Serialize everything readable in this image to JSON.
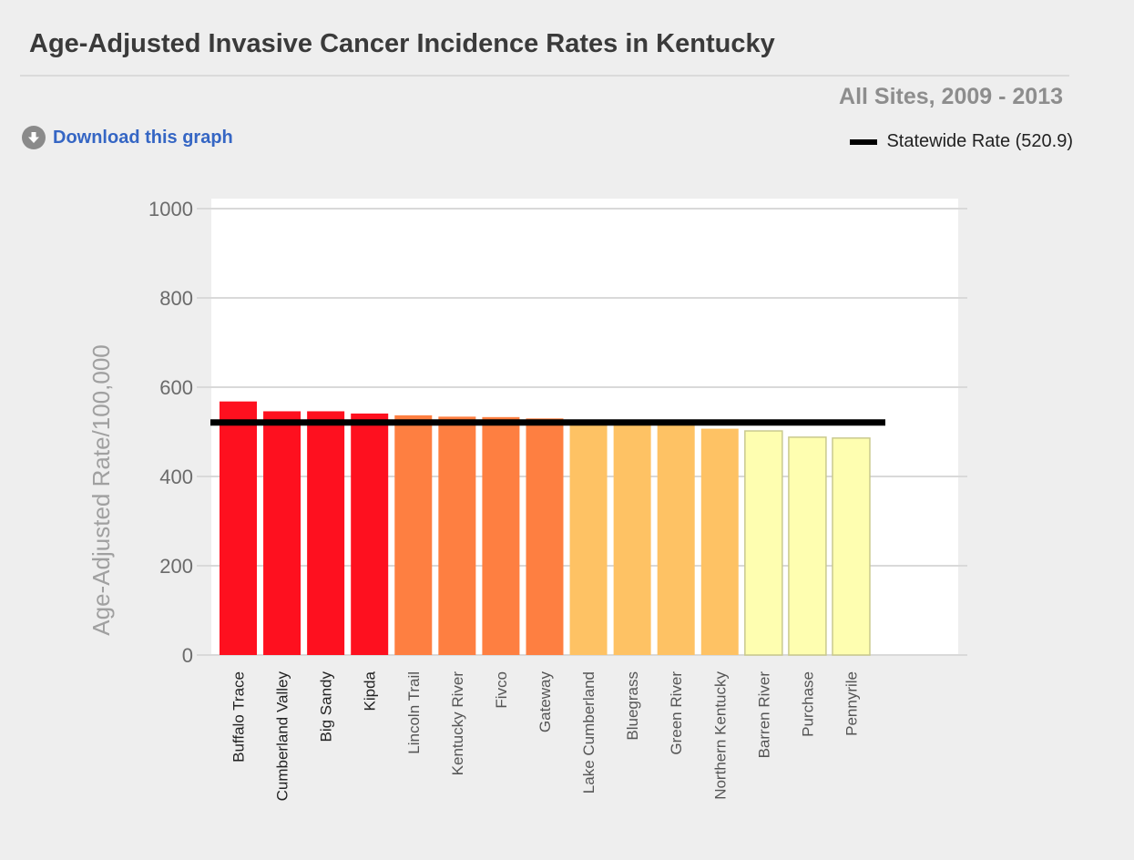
{
  "header": {
    "title": "Age-Adjusted Invasive Cancer Incidence Rates in Kentucky",
    "subtitle": "All Sites, 2009 - 2013"
  },
  "actions": {
    "download_label": "Download this graph",
    "download_icon": "download-arrow-circle-icon"
  },
  "legend": {
    "label": "Statewide Rate (520.9)",
    "color": "#000000"
  },
  "colors": {
    "red": "#fe101f",
    "orange": "#fe7f41",
    "light-orange": "#fec264",
    "pale-yellow": "#fefeb0",
    "plot_background": "#ffffff",
    "page_background": "#eeeeee"
  },
  "chart_data": {
    "type": "bar",
    "title": "Age-Adjusted Invasive Cancer Incidence Rates in Kentucky",
    "subtitle": "All Sites, 2009 - 2013",
    "xlabel": "",
    "ylabel": "Age-Adjusted Rate/100,000",
    "ylim": [
      0,
      1000
    ],
    "yticks": [
      0,
      200,
      400,
      600,
      800,
      1000
    ],
    "grid": true,
    "legend_position": "top-right",
    "categories": [
      "Buffalo Trace",
      "Cumberland Valley",
      "Big Sandy",
      "Kipda",
      "Lincoln Trail",
      "Kentucky River",
      "Fivco",
      "Gateway",
      "Lake Cumberland",
      "Bluegrass",
      "Green River",
      "Northern Kentucky",
      "Barren River",
      "Purchase",
      "Pennyrile"
    ],
    "values": [
      568,
      546,
      546,
      541,
      537,
      534,
      533,
      530,
      527,
      524,
      522,
      507,
      502,
      488,
      486
    ],
    "bar_colors": [
      "#fe101f",
      "#fe101f",
      "#fe101f",
      "#fe101f",
      "#fe7f41",
      "#fe7f41",
      "#fe7f41",
      "#fe7f41",
      "#fec264",
      "#fec264",
      "#fec264",
      "#fec264",
      "#fefeb0",
      "#fefeb0",
      "#fefeb0"
    ],
    "reference_line": {
      "name": "Statewide Rate (520.9)",
      "value": 520.9,
      "color": "#000000"
    }
  }
}
